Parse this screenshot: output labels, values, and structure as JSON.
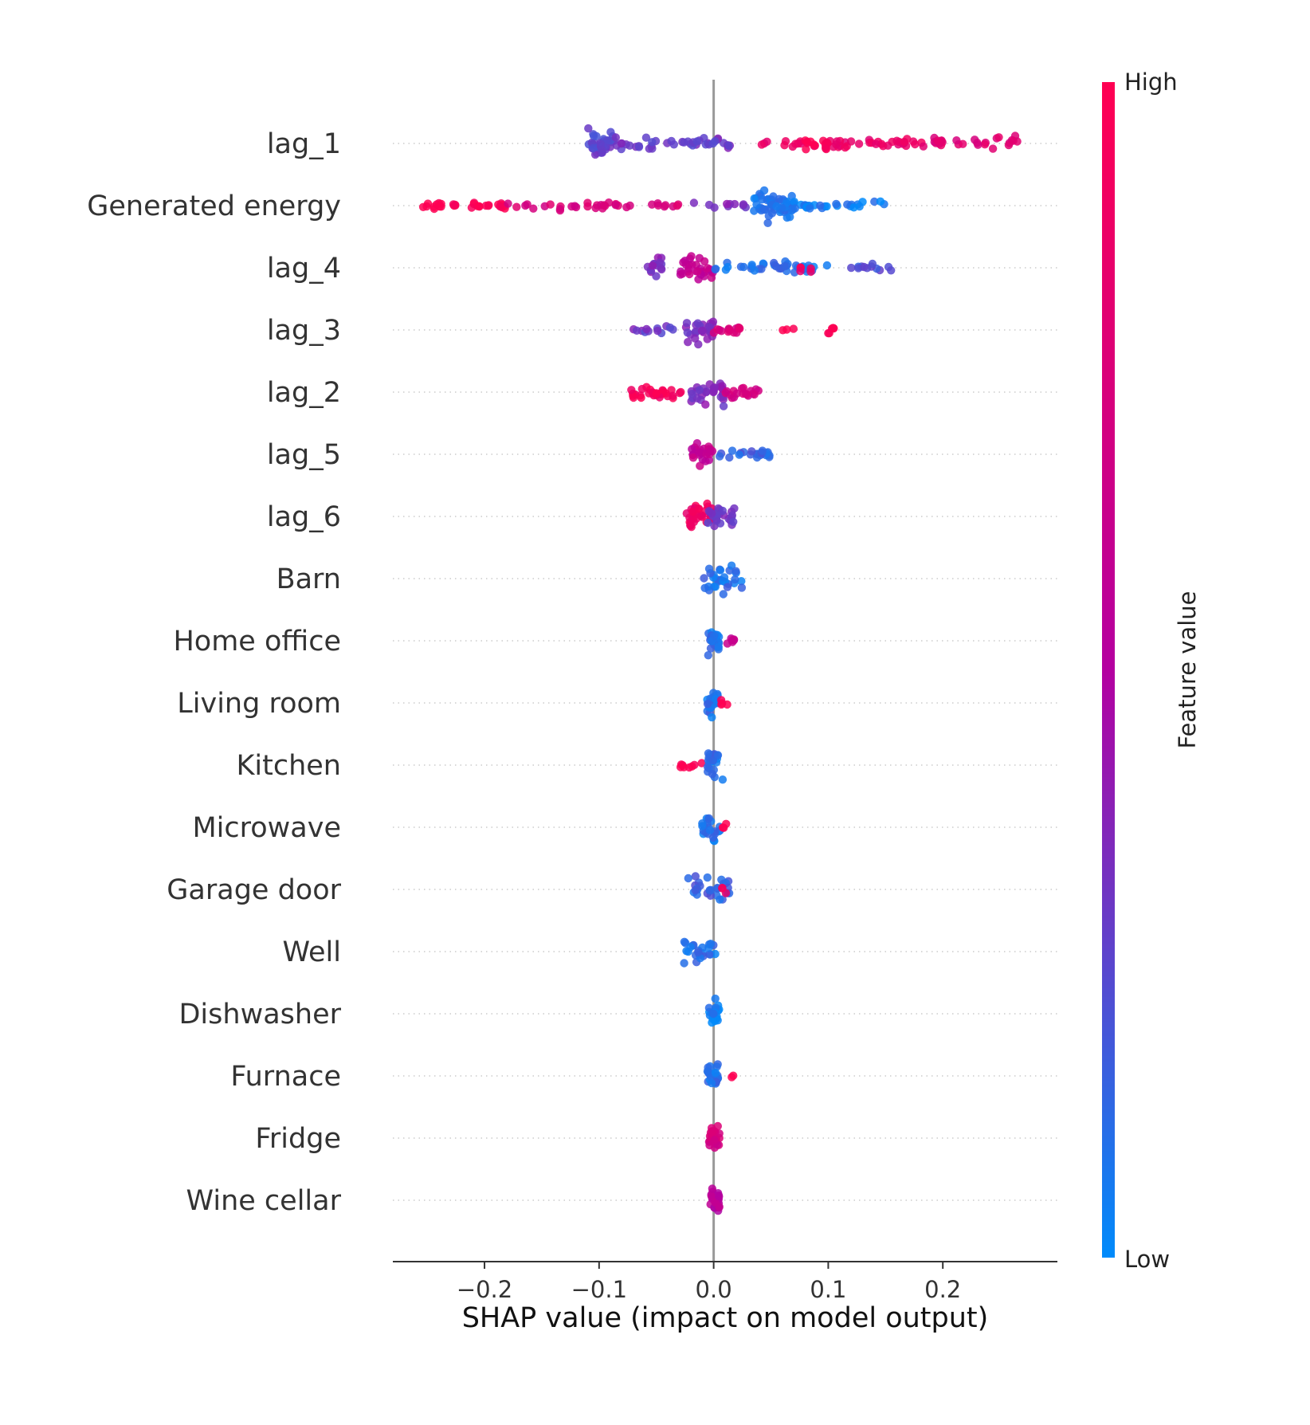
{
  "chart_data": {
    "type": "scatter",
    "subtype": "shap-beeswarm",
    "xlabel": "SHAP value (impact on model output)",
    "xlim": [
      -0.28,
      0.3
    ],
    "xticks": [
      -0.2,
      -0.1,
      0.0,
      0.1,
      0.2
    ],
    "xtick_labels": [
      "−0.2",
      "−0.1",
      "0.0",
      "0.1",
      "0.2"
    ],
    "zero_line": 0.0,
    "colorbar": {
      "title": "Feature value",
      "high_label": "High",
      "low_label": "Low",
      "low_color": "#008bfb",
      "high_color": "#ff0052",
      "mid_color": "#b400a0"
    },
    "features": [
      {
        "name": "lag_1",
        "segments": [
          {
            "x": [
              -0.112,
              -0.085
            ],
            "c": 0.25,
            "w": 1.8,
            "n": 40
          },
          {
            "x": [
              -0.085,
              0.015
            ],
            "c": 0.3,
            "w": 0.7,
            "n": 40
          },
          {
            "x": [
              0.04,
              0.2
            ],
            "c": 0.85,
            "w": 0.6,
            "n": 50
          },
          {
            "x": [
              0.08,
              0.1
            ],
            "c": 1.0,
            "w": 0.8,
            "n": 12
          },
          {
            "x": [
              0.19,
              0.27
            ],
            "c": 0.8,
            "w": 0.9,
            "n": 22
          }
        ]
      },
      {
        "name": "Generated energy",
        "segments": [
          {
            "x": [
              -0.255,
              -0.18
            ],
            "c": 1.0,
            "w": 0.4,
            "n": 30
          },
          {
            "x": [
              -0.18,
              -0.02
            ],
            "c": 0.75,
            "w": 0.5,
            "n": 35
          },
          {
            "x": [
              -0.02,
              0.03
            ],
            "c": 0.35,
            "w": 0.3,
            "n": 10
          },
          {
            "x": [
              0.035,
              0.07
            ],
            "c": 0.08,
            "w": 1.9,
            "n": 55
          },
          {
            "x": [
              0.07,
              0.15
            ],
            "c": 0.05,
            "w": 0.5,
            "n": 28
          }
        ]
      },
      {
        "name": "lag_4",
        "segments": [
          {
            "x": [
              -0.058,
              -0.045
            ],
            "c": 0.35,
            "w": 1.3,
            "n": 14
          },
          {
            "x": [
              -0.03,
              0.0
            ],
            "c": 0.6,
            "w": 1.7,
            "n": 30
          },
          {
            "x": [
              0.0,
              0.1
            ],
            "c": 0.1,
            "w": 0.7,
            "n": 40
          },
          {
            "x": [
              0.075,
              0.085
            ],
            "c": 0.9,
            "w": 0.6,
            "n": 5
          },
          {
            "x": [
              0.12,
              0.155
            ],
            "c": 0.2,
            "w": 0.5,
            "n": 12
          }
        ]
      },
      {
        "name": "lag_3",
        "segments": [
          {
            "x": [
              -0.07,
              -0.035
            ],
            "c": 0.3,
            "w": 0.4,
            "n": 12
          },
          {
            "x": [
              -0.025,
              0.0
            ],
            "c": 0.35,
            "w": 1.5,
            "n": 28
          },
          {
            "x": [
              0.0,
              0.025
            ],
            "c": 0.75,
            "w": 0.9,
            "n": 14
          },
          {
            "x": [
              0.05,
              0.07
            ],
            "c": 1.0,
            "w": 0.3,
            "n": 3
          },
          {
            "x": [
              0.095,
              0.105
            ],
            "c": 1.0,
            "w": 0.6,
            "n": 6
          }
        ]
      },
      {
        "name": "lag_2",
        "segments": [
          {
            "x": [
              -0.075,
              -0.025
            ],
            "c": 0.95,
            "w": 0.7,
            "n": 30
          },
          {
            "x": [
              -0.02,
              0.01
            ],
            "c": 0.35,
            "w": 1.7,
            "n": 30
          },
          {
            "x": [
              0.01,
              0.04
            ],
            "c": 0.7,
            "w": 0.7,
            "n": 18
          }
        ]
      },
      {
        "name": "lag_5",
        "segments": [
          {
            "x": [
              -0.02,
              0.0
            ],
            "c": 0.6,
            "w": 1.5,
            "n": 24
          },
          {
            "x": [
              0.0,
              0.05
            ],
            "c": 0.15,
            "w": 0.6,
            "n": 22
          }
        ]
      },
      {
        "name": "lag_6",
        "segments": [
          {
            "x": [
              -0.025,
              0.0
            ],
            "c": 0.9,
            "w": 1.6,
            "n": 34
          },
          {
            "x": [
              -0.005,
              0.018
            ],
            "c": 0.3,
            "w": 1.2,
            "n": 24
          }
        ]
      },
      {
        "name": "Barn",
        "segments": [
          {
            "x": [
              -0.01,
              0.025
            ],
            "c": 0.1,
            "w": 1.6,
            "n": 30
          }
        ]
      },
      {
        "name": "Home office",
        "segments": [
          {
            "x": [
              -0.005,
              0.005
            ],
            "c": 0.1,
            "w": 1.6,
            "n": 22
          },
          {
            "x": [
              0.005,
              0.018
            ],
            "c": 0.6,
            "w": 0.5,
            "n": 6
          }
        ]
      },
      {
        "name": "Living room",
        "segments": [
          {
            "x": [
              -0.006,
              0.004
            ],
            "c": 0.1,
            "w": 1.6,
            "n": 22
          },
          {
            "x": [
              0.005,
              0.012
            ],
            "c": 1.0,
            "w": 0.5,
            "n": 4
          }
        ]
      },
      {
        "name": "Kitchen",
        "segments": [
          {
            "x": [
              -0.03,
              -0.008
            ],
            "c": 1.0,
            "w": 0.4,
            "n": 8
          },
          {
            "x": [
              -0.006,
              0.008
            ],
            "c": 0.1,
            "w": 1.6,
            "n": 22
          }
        ]
      },
      {
        "name": "Microwave",
        "segments": [
          {
            "x": [
              -0.01,
              0.006
            ],
            "c": 0.1,
            "w": 1.6,
            "n": 22
          },
          {
            "x": [
              0.006,
              0.013
            ],
            "c": 1.0,
            "w": 0.4,
            "n": 3
          }
        ]
      },
      {
        "name": "Garage door",
        "segments": [
          {
            "x": [
              -0.025,
              0.015
            ],
            "c": 0.15,
            "w": 1.5,
            "n": 28
          },
          {
            "x": [
              0.0,
              0.012
            ],
            "c": 0.9,
            "w": 0.4,
            "n": 3
          }
        ]
      },
      {
        "name": "Well",
        "segments": [
          {
            "x": [
              -0.026,
              0.006
            ],
            "c": 0.1,
            "w": 1.5,
            "n": 24
          }
        ]
      },
      {
        "name": "Dishwasher",
        "segments": [
          {
            "x": [
              -0.004,
              0.005
            ],
            "c": 0.05,
            "w": 1.6,
            "n": 22
          }
        ]
      },
      {
        "name": "Furnace",
        "segments": [
          {
            "x": [
              -0.007,
              0.005
            ],
            "c": 0.1,
            "w": 1.6,
            "n": 22
          },
          {
            "x": [
              0.015,
              0.018
            ],
            "c": 1.0,
            "w": 0.3,
            "n": 2
          }
        ]
      },
      {
        "name": "Fridge",
        "segments": [
          {
            "x": [
              -0.004,
              0.005
            ],
            "c": 0.7,
            "w": 1.6,
            "n": 24
          }
        ]
      },
      {
        "name": "Wine cellar",
        "segments": [
          {
            "x": [
              -0.004,
              0.005
            ],
            "c": 0.55,
            "w": 1.6,
            "n": 24
          }
        ]
      }
    ]
  }
}
